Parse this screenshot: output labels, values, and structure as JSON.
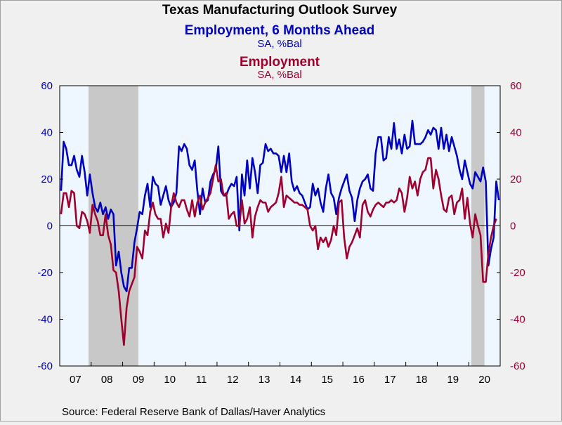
{
  "chart_data": {
    "type": "line",
    "title": "Texas Manufacturing Outlook Survey",
    "series": [
      {
        "name": "Employment, 6 Months Ahead",
        "subtitle": "SA, %Bal",
        "color": "#0000c0",
        "axis": "left",
        "values": [
          15,
          36,
          33,
          26,
          26,
          30,
          24,
          21,
          30,
          23,
          13,
          22,
          14,
          8,
          6,
          10,
          5,
          8,
          3,
          7,
          5,
          -17,
          -11,
          -20,
          -26,
          -28,
          -18,
          -18,
          -7,
          -1,
          6,
          5,
          13,
          18,
          8,
          21,
          18,
          17,
          9,
          13,
          17,
          11,
          8,
          10,
          14,
          34,
          32,
          35,
          33,
          26,
          24,
          28,
          15,
          5,
          16,
          10,
          11,
          19,
          22,
          24,
          34,
          15,
          13,
          13,
          16,
          18,
          17,
          21,
          -2,
          22,
          13,
          28,
          16,
          29,
          23,
          14,
          26,
          27,
          35,
          32,
          33,
          31,
          31,
          30,
          23,
          30,
          23,
          31,
          19,
          15,
          17,
          14,
          13,
          10,
          7,
          8,
          18,
          13,
          16,
          10,
          6,
          16,
          22,
          14,
          12,
          5,
          12,
          16,
          19,
          22,
          15,
          12,
          2,
          11,
          16,
          19,
          20,
          22,
          16,
          15,
          31,
          38,
          38,
          28,
          29,
          38,
          33,
          44,
          33,
          37,
          31,
          39,
          33,
          34,
          45,
          35,
          35,
          35,
          36,
          38,
          41,
          39,
          42,
          41,
          33,
          42,
          33,
          39,
          32,
          38,
          34,
          30,
          24,
          20,
          28,
          23,
          18,
          16,
          23,
          21,
          19,
          25,
          19,
          -17,
          -10,
          -5,
          19,
          11
        ]
      },
      {
        "name": "Employment",
        "subtitle": "SA, %Bal",
        "color": "#a0002e",
        "axis": "right",
        "values": [
          5,
          14,
          14,
          8,
          15,
          14,
          0,
          -1,
          6,
          5,
          2,
          -3,
          9,
          5,
          2,
          -4,
          -4,
          5,
          -4,
          -8,
          -19,
          -20,
          -28,
          -40,
          -51,
          -35,
          -28,
          -25,
          -22,
          -9,
          -11,
          -14,
          -2,
          -4,
          6,
          10,
          5,
          3,
          3,
          -5,
          1,
          -3,
          8,
          14,
          10,
          8,
          11,
          11,
          7,
          4,
          11,
          4,
          10,
          13,
          7,
          10,
          12,
          14,
          20,
          26,
          19,
          20,
          13,
          14,
          3,
          5,
          6,
          0,
          0,
          11,
          1,
          3,
          8,
          -5,
          4,
          8,
          11,
          10,
          10,
          6,
          8,
          9,
          10,
          14,
          21,
          8,
          13,
          12,
          11,
          10,
          10,
          9,
          9,
          8,
          7,
          0,
          -2,
          0,
          -10,
          -5,
          -7,
          -5,
          -9,
          -6,
          0,
          -4,
          10,
          11,
          -5,
          -14,
          -9,
          -7,
          -4,
          -1,
          -5,
          9,
          11,
          6,
          4,
          7,
          9,
          10,
          9,
          8,
          10,
          10,
          11,
          10,
          11,
          16,
          14,
          6,
          12,
          21,
          16,
          19,
          13,
          20,
          23,
          24,
          29,
          29,
          16,
          24,
          20,
          13,
          7,
          6,
          12,
          13,
          5,
          10,
          11,
          16,
          3,
          12,
          1,
          -5,
          5,
          0,
          -4,
          -24,
          -24,
          -12,
          -5,
          0,
          3
        ]
      }
    ],
    "x_ticks": [
      "07",
      "08",
      "09",
      "10",
      "11",
      "12",
      "13",
      "14",
      "15",
      "16",
      "17",
      "18",
      "19",
      "20"
    ],
    "y_ticks": [
      "-60",
      "-40",
      "-20",
      "0",
      "20",
      "40",
      "60"
    ],
    "ylim": [
      -60,
      60
    ],
    "ylim_right": [
      -60,
      60
    ],
    "recessions": [
      {
        "start": "2007-12",
        "end": "2009-06"
      },
      {
        "start": "2020-02",
        "end": "2020-06"
      }
    ],
    "plot_background": "#eef6ff",
    "recession_color": "#c8c8c8",
    "left_axis_color": "#0000c0",
    "right_axis_color": "#a0002e",
    "grid": false,
    "source": "Source:  Federal Reserve Bank of Dallas/Haver Analytics"
  }
}
